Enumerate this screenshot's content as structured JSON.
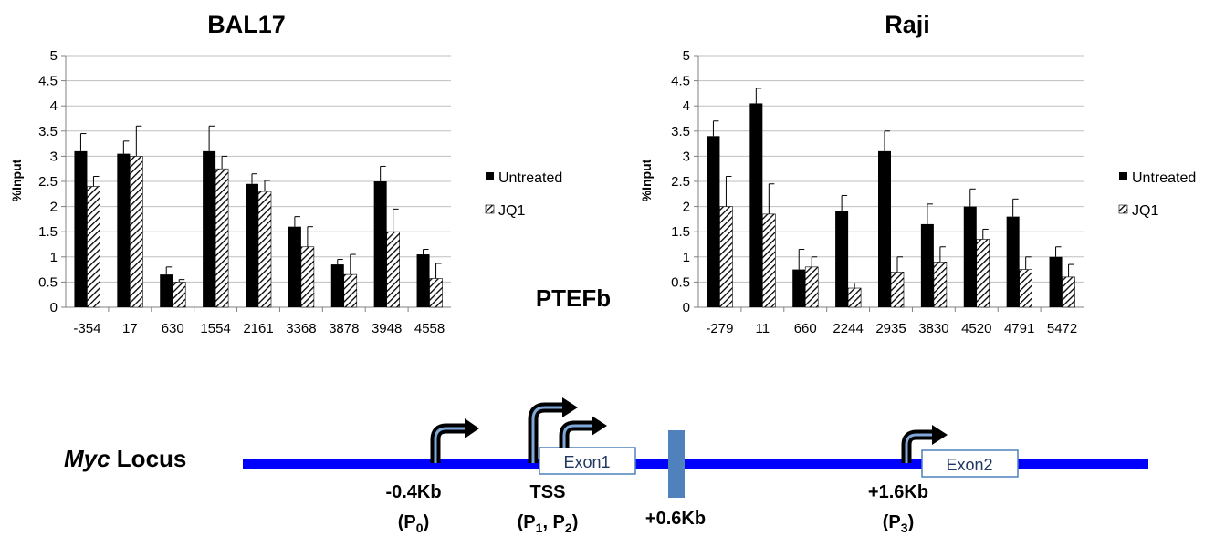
{
  "chart_data": [
    {
      "type": "bar",
      "title": "BAL17",
      "ylabel": "%Input",
      "ylim": [
        0,
        5
      ],
      "yticks": [
        "0",
        "0.5",
        "1",
        "1.5",
        "2",
        "2.5",
        "3",
        "3.5",
        "4",
        "4.5",
        "5"
      ],
      "grid": true,
      "legend_position": "right",
      "categories": [
        "-354",
        "17",
        "630",
        "1554",
        "2161",
        "3368",
        "3878",
        "3948",
        "4558"
      ],
      "series": [
        {
          "name": "Untreated",
          "fill": "solid",
          "color": "#000000",
          "values": [
            3.1,
            3.05,
            0.65,
            3.1,
            2.45,
            1.6,
            0.85,
            2.5,
            1.05
          ],
          "errors": [
            0.35,
            0.25,
            0.15,
            0.5,
            0.2,
            0.2,
            0.1,
            0.3,
            0.1
          ]
        },
        {
          "name": "JQ1",
          "fill": "hatched",
          "color": "#000000",
          "values": [
            2.4,
            3.0,
            0.5,
            2.75,
            2.3,
            1.2,
            0.65,
            1.5,
            0.57
          ],
          "errors": [
            0.2,
            0.6,
            0.05,
            0.25,
            0.22,
            0.4,
            0.4,
            0.45,
            0.3
          ]
        }
      ]
    },
    {
      "type": "bar",
      "title": "Raji",
      "ylabel": "%Input",
      "ylim": [
        0,
        5
      ],
      "yticks": [
        "0",
        "0.5",
        "1",
        "1.5",
        "2",
        "2.5",
        "3",
        "3.5",
        "4",
        "4.5",
        "5"
      ],
      "grid": true,
      "legend_position": "right",
      "categories": [
        "-279",
        "11",
        "660",
        "2244",
        "2935",
        "3830",
        "4520",
        "4791",
        "5472"
      ],
      "series": [
        {
          "name": "Untreated",
          "fill": "solid",
          "color": "#000000",
          "values": [
            3.4,
            4.05,
            0.75,
            1.92,
            3.1,
            1.65,
            2.0,
            1.8,
            1.0
          ],
          "errors": [
            0.3,
            0.3,
            0.4,
            0.3,
            0.4,
            0.4,
            0.35,
            0.35,
            0.2
          ]
        },
        {
          "name": "JQ1",
          "fill": "hatched",
          "color": "#000000",
          "values": [
            2.0,
            1.85,
            0.8,
            0.38,
            0.7,
            0.9,
            1.35,
            0.75,
            0.6
          ],
          "errors": [
            0.6,
            0.6,
            0.2,
            0.1,
            0.3,
            0.3,
            0.2,
            0.25,
            0.25
          ]
        }
      ]
    }
  ],
  "center_label": "PTEFb",
  "locus": {
    "title_italic": "Myc",
    "title_rest": " Locus",
    "line_color": "#0000ff",
    "marker_color": "#4f81bd",
    "arrow_color": "#000000",
    "arrow_inner_color": "#7fa8d8",
    "exons": [
      {
        "label": "Exon1"
      },
      {
        "label": "Exon2"
      }
    ],
    "labels": {
      "p0_pos": "-0.4Kb",
      "p0_main": "(P",
      "p0_sub": "0",
      "p0_end": ")",
      "tss": "TSS",
      "tss_color": "#ff0000",
      "p12_open": "(P",
      "p12_sub1": "1",
      "p12_mid": ", P",
      "p12_sub2": "2",
      "p12_end": ")",
      "plus06": "+0.6Kb",
      "p3_pos": "+1.6Kb",
      "p3_main": "(P",
      "p3_sub": "3",
      "p3_end": ")"
    }
  }
}
